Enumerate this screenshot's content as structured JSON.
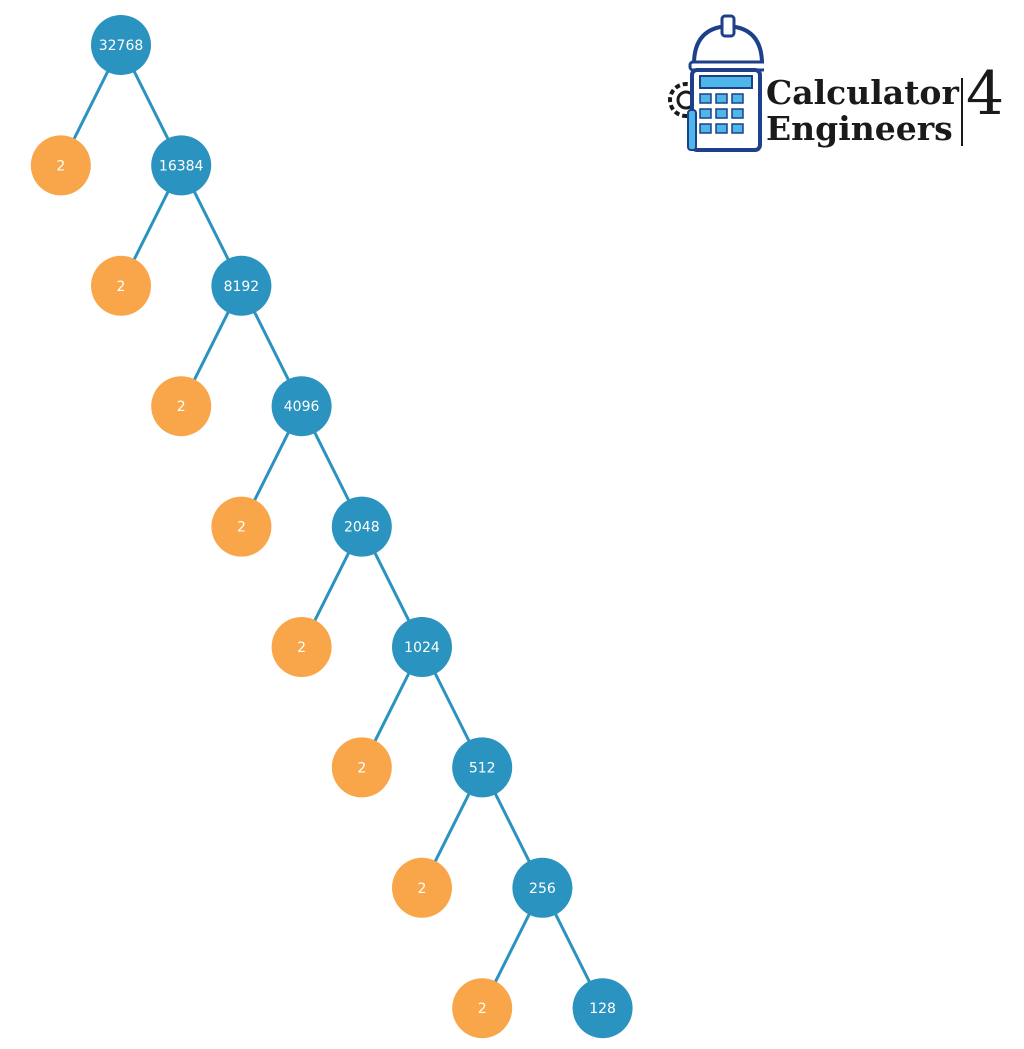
{
  "logo": {
    "line1": "Calculator",
    "line2": "Engineers",
    "number": "4"
  },
  "colors": {
    "composite": "#2a93bf",
    "prime": "#f9a64a",
    "edge": "#2a93bf",
    "text": "#ffffff"
  },
  "tree": [
    {
      "composite": "32768",
      "prime": "2"
    },
    {
      "composite": "16384",
      "prime": "2"
    },
    {
      "composite": "8192",
      "prime": "2"
    },
    {
      "composite": "4096",
      "prime": "2"
    },
    {
      "composite": "2048",
      "prime": "2"
    },
    {
      "composite": "1024",
      "prime": "2"
    },
    {
      "composite": "512",
      "prime": "2"
    },
    {
      "composite": "256",
      "prime": "2"
    },
    {
      "composite": "128",
      "prime": null
    }
  ]
}
